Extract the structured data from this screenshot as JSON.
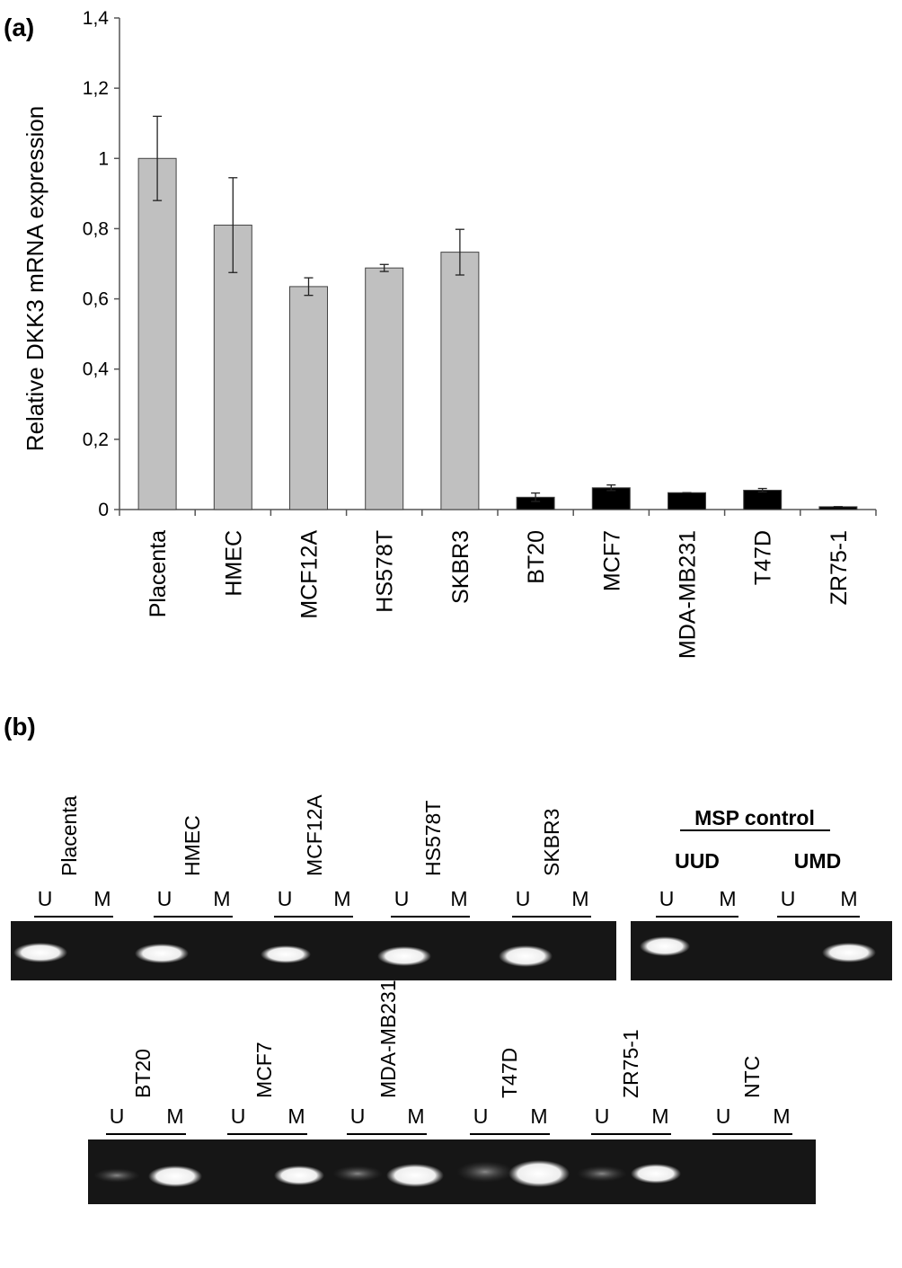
{
  "panel_labels": [
    "(a)",
    "(b)"
  ],
  "chart_data": {
    "type": "bar",
    "y_label": "Relative DKK3 mRNA expression",
    "categories": [
      "Placenta",
      "HMEC",
      "MCF12A",
      "HS578T",
      "SKBR3",
      "BT20",
      "MCF7",
      "MDA-MB231",
      "T47D",
      "ZR75-1"
    ],
    "values": [
      1.0,
      0.81,
      0.635,
      0.688,
      0.733,
      0.035,
      0.062,
      0.048,
      0.055,
      0.008
    ],
    "errors": [
      0.12,
      0.135,
      0.025,
      0.01,
      0.065,
      0.012,
      0.008,
      0,
      0.005,
      0
    ],
    "colors": [
      "#c0c0c0",
      "#c0c0c0",
      "#c0c0c0",
      "#c0c0c0",
      "#c0c0c0",
      "#000000",
      "#000000",
      "#000000",
      "#000000",
      "#000000"
    ],
    "ylim": [
      0,
      1.4
    ],
    "yticks": [
      0,
      {
        "value": 0.2,
        "label": "0,2"
      },
      {
        "value": 0.4,
        "label": "0,4"
      },
      {
        "value": 0.6,
        "label": "0,6"
      },
      {
        "value": 0.8,
        "label": "0,8"
      },
      1,
      {
        "value": 1.2,
        "label": "1,2"
      },
      {
        "value": 1.4,
        "label": "1,4"
      }
    ]
  },
  "gel": {
    "lane_letters": [
      "U",
      "M"
    ],
    "top_samples": [
      "Placenta",
      "HMEC",
      "MCF12A",
      "HS578T",
      "SKBR3"
    ],
    "control_title": "MSP control",
    "control_samples": [
      "UUD",
      "UMD"
    ],
    "bottom_samples": [
      "BT20",
      "MCF7",
      "MDA-MB231",
      "T47D",
      "ZR75-1",
      "NTC"
    ]
  }
}
